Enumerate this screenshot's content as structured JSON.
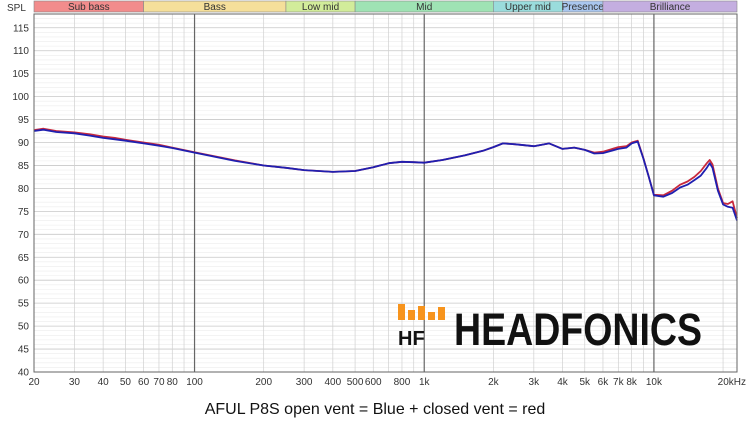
{
  "chart_data": {
    "type": "line",
    "y_unit_label": "SPL",
    "caption": "AFUL P8S open vent = Blue + closed vent = red",
    "x_scale": "log",
    "xlim": [
      20,
      23000
    ],
    "ylim": [
      40,
      118
    ],
    "y_ticks": [
      40,
      45,
      50,
      55,
      60,
      65,
      70,
      75,
      80,
      85,
      90,
      95,
      100,
      105,
      110,
      115
    ],
    "x_ticks": [
      {
        "value": 20,
        "label": "20"
      },
      {
        "value": 30,
        "label": "30"
      },
      {
        "value": 40,
        "label": "40"
      },
      {
        "value": 50,
        "label": "50"
      },
      {
        "value": 60,
        "label": "60"
      },
      {
        "value": 70,
        "label": "70"
      },
      {
        "value": 80,
        "label": "80"
      },
      {
        "value": 100,
        "label": "100"
      },
      {
        "value": 200,
        "label": "200"
      },
      {
        "value": 300,
        "label": "300"
      },
      {
        "value": 400,
        "label": "400"
      },
      {
        "value": 500,
        "label": "500"
      },
      {
        "value": 600,
        "label": "600"
      },
      {
        "value": 800,
        "label": "800"
      },
      {
        "value": 1000,
        "label": "1k"
      },
      {
        "value": 2000,
        "label": "2k"
      },
      {
        "value": 3000,
        "label": "3k"
      },
      {
        "value": 4000,
        "label": "4k"
      },
      {
        "value": 5000,
        "label": "5k"
      },
      {
        "value": 6000,
        "label": "6k"
      },
      {
        "value": 7000,
        "label": "7k"
      },
      {
        "value": 8000,
        "label": "8k"
      },
      {
        "value": 10000,
        "label": "10k"
      },
      {
        "value": 20000,
        "label": "20kHz"
      }
    ],
    "bands": [
      {
        "name": "Sub bass",
        "from": 20,
        "to": 60,
        "color": "#f28c8c"
      },
      {
        "name": "Bass",
        "from": 60,
        "to": 250,
        "color": "#f5df9a"
      },
      {
        "name": "Low mid",
        "from": 250,
        "to": 500,
        "color": "#d2ec9a"
      },
      {
        "name": "Mid",
        "from": 500,
        "to": 2000,
        "color": "#9fe3b4"
      },
      {
        "name": "Upper mid",
        "from": 2000,
        "to": 4000,
        "color": "#9adcdc"
      },
      {
        "name": "Presence",
        "from": 4000,
        "to": 6000,
        "color": "#a9c6ee"
      },
      {
        "name": "Brilliance",
        "from": 6000,
        "to": 23000,
        "color": "#c4aee0"
      }
    ],
    "grid": true,
    "series": [
      {
        "color": "#1f1fb0",
        "points": [
          [
            20,
            92.5
          ],
          [
            22,
            92.8
          ],
          [
            25,
            92.3
          ],
          [
            30,
            92.0
          ],
          [
            35,
            91.5
          ],
          [
            40,
            91.0
          ],
          [
            45,
            90.7
          ],
          [
            50,
            90.4
          ],
          [
            60,
            89.8
          ],
          [
            70,
            89.3
          ],
          [
            80,
            88.8
          ],
          [
            100,
            87.8
          ],
          [
            150,
            86.0
          ],
          [
            200,
            85.0
          ],
          [
            250,
            84.5
          ],
          [
            300,
            84.0
          ],
          [
            400,
            83.6
          ],
          [
            500,
            83.8
          ],
          [
            600,
            84.6
          ],
          [
            700,
            85.5
          ],
          [
            800,
            85.8
          ],
          [
            900,
            85.7
          ],
          [
            1000,
            85.6
          ],
          [
            1200,
            86.2
          ],
          [
            1500,
            87.2
          ],
          [
            1800,
            88.2
          ],
          [
            2000,
            89.0
          ],
          [
            2200,
            89.8
          ],
          [
            2500,
            89.6
          ],
          [
            3000,
            89.2
          ],
          [
            3500,
            89.8
          ],
          [
            4000,
            88.6
          ],
          [
            4500,
            88.9
          ],
          [
            5000,
            88.4
          ],
          [
            5500,
            87.6
          ],
          [
            6000,
            87.7
          ],
          [
            7000,
            88.6
          ],
          [
            7600,
            88.9
          ],
          [
            8000,
            89.8
          ],
          [
            8500,
            90.2
          ],
          [
            9000,
            86.5
          ],
          [
            9500,
            82.5
          ],
          [
            10000,
            78.5
          ],
          [
            11000,
            78.2
          ],
          [
            12000,
            79.0
          ],
          [
            13000,
            80.2
          ],
          [
            14000,
            80.8
          ],
          [
            15000,
            81.8
          ],
          [
            16000,
            82.8
          ],
          [
            17000,
            84.5
          ],
          [
            17500,
            85.5
          ],
          [
            18000,
            84.5
          ],
          [
            19000,
            79.5
          ],
          [
            20000,
            76.5
          ],
          [
            21000,
            76.0
          ],
          [
            22000,
            75.8
          ],
          [
            23000,
            73.0
          ]
        ]
      },
      {
        "color": "#c8283c",
        "points": [
          [
            20,
            92.7
          ],
          [
            22,
            93.0
          ],
          [
            25,
            92.5
          ],
          [
            30,
            92.2
          ],
          [
            35,
            91.8
          ],
          [
            40,
            91.3
          ],
          [
            45,
            91.0
          ],
          [
            50,
            90.6
          ],
          [
            60,
            90.0
          ],
          [
            70,
            89.5
          ],
          [
            80,
            88.9
          ],
          [
            100,
            87.9
          ],
          [
            150,
            86.1
          ],
          [
            200,
            85.0
          ],
          [
            250,
            84.5
          ],
          [
            300,
            84.0
          ],
          [
            400,
            83.6
          ],
          [
            500,
            83.8
          ],
          [
            600,
            84.6
          ],
          [
            700,
            85.5
          ],
          [
            800,
            85.8
          ],
          [
            900,
            85.7
          ],
          [
            1000,
            85.6
          ],
          [
            1200,
            86.2
          ],
          [
            1500,
            87.2
          ],
          [
            1800,
            88.2
          ],
          [
            2000,
            89.0
          ],
          [
            2200,
            89.8
          ],
          [
            2500,
            89.6
          ],
          [
            3000,
            89.2
          ],
          [
            3500,
            89.8
          ],
          [
            4000,
            88.6
          ],
          [
            4500,
            88.9
          ],
          [
            5000,
            88.4
          ],
          [
            5500,
            87.8
          ],
          [
            6000,
            88.0
          ],
          [
            7000,
            89.0
          ],
          [
            7600,
            89.2
          ],
          [
            8000,
            90.0
          ],
          [
            8500,
            90.4
          ],
          [
            9000,
            86.6
          ],
          [
            9500,
            82.5
          ],
          [
            10000,
            78.6
          ],
          [
            11000,
            78.5
          ],
          [
            12000,
            79.5
          ],
          [
            13000,
            80.8
          ],
          [
            14000,
            81.5
          ],
          [
            15000,
            82.5
          ],
          [
            16000,
            83.8
          ],
          [
            17000,
            85.5
          ],
          [
            17500,
            86.2
          ],
          [
            18000,
            85.2
          ],
          [
            19000,
            80.0
          ],
          [
            20000,
            76.8
          ],
          [
            21000,
            76.6
          ],
          [
            22000,
            77.2
          ],
          [
            23000,
            73.5
          ]
        ]
      }
    ]
  },
  "logo": {
    "badge_text": "HF",
    "brand_text": "HEADFONICS",
    "colors": {
      "orange": "#f7941d",
      "black": "#111111"
    }
  }
}
